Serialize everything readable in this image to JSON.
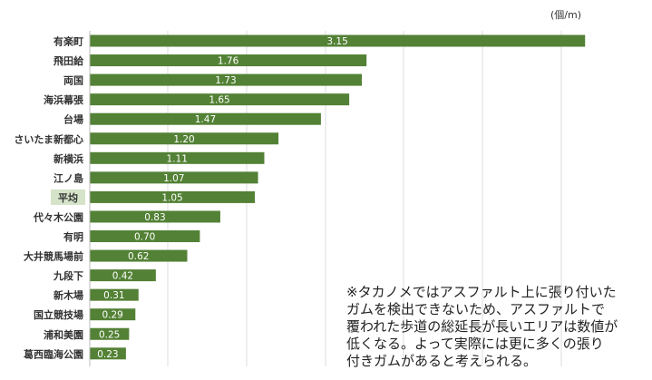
{
  "chart_data": {
    "type": "bar",
    "orientation": "horizontal",
    "unit": "(個/m)",
    "categories": [
      "有楽町",
      "飛田給",
      "両国",
      "海浜幕張",
      "台場",
      "さいたま新都心",
      "新横浜",
      "江ノ島",
      "平均",
      "代々木公園",
      "有明",
      "大井競馬場前",
      "九段下",
      "新木場",
      "国立競技場",
      "浦和美園",
      "葛西臨海公園"
    ],
    "values": [
      3.15,
      1.76,
      1.73,
      1.65,
      1.47,
      1.2,
      1.11,
      1.07,
      1.05,
      0.83,
      0.7,
      0.62,
      0.42,
      0.31,
      0.29,
      0.25,
      0.23
    ],
    "value_labels": [
      "3.15",
      "1.76",
      "1.73",
      "1.65",
      "1.47",
      "1.20",
      "1.11",
      "1.07",
      "1.05",
      "0.83",
      "0.70",
      "0.62",
      "0.42",
      "0.31",
      "0.29",
      "0.25",
      "0.23"
    ],
    "highlight_category": "平均",
    "xlim": [
      0,
      3.3
    ],
    "grid": true,
    "bar_color": "#538135",
    "highlight_bg": "#d5e3c8",
    "note_lines": [
      "※タカノメではアスファルト上に張り付いた",
      "ガムを検出できないため、アスファルトで",
      "覆われた歩道の総延長が長いエリアは数値が",
      "低くなる。よって実際には更に多くの張り",
      "付きガムがあると考えられる。"
    ]
  }
}
